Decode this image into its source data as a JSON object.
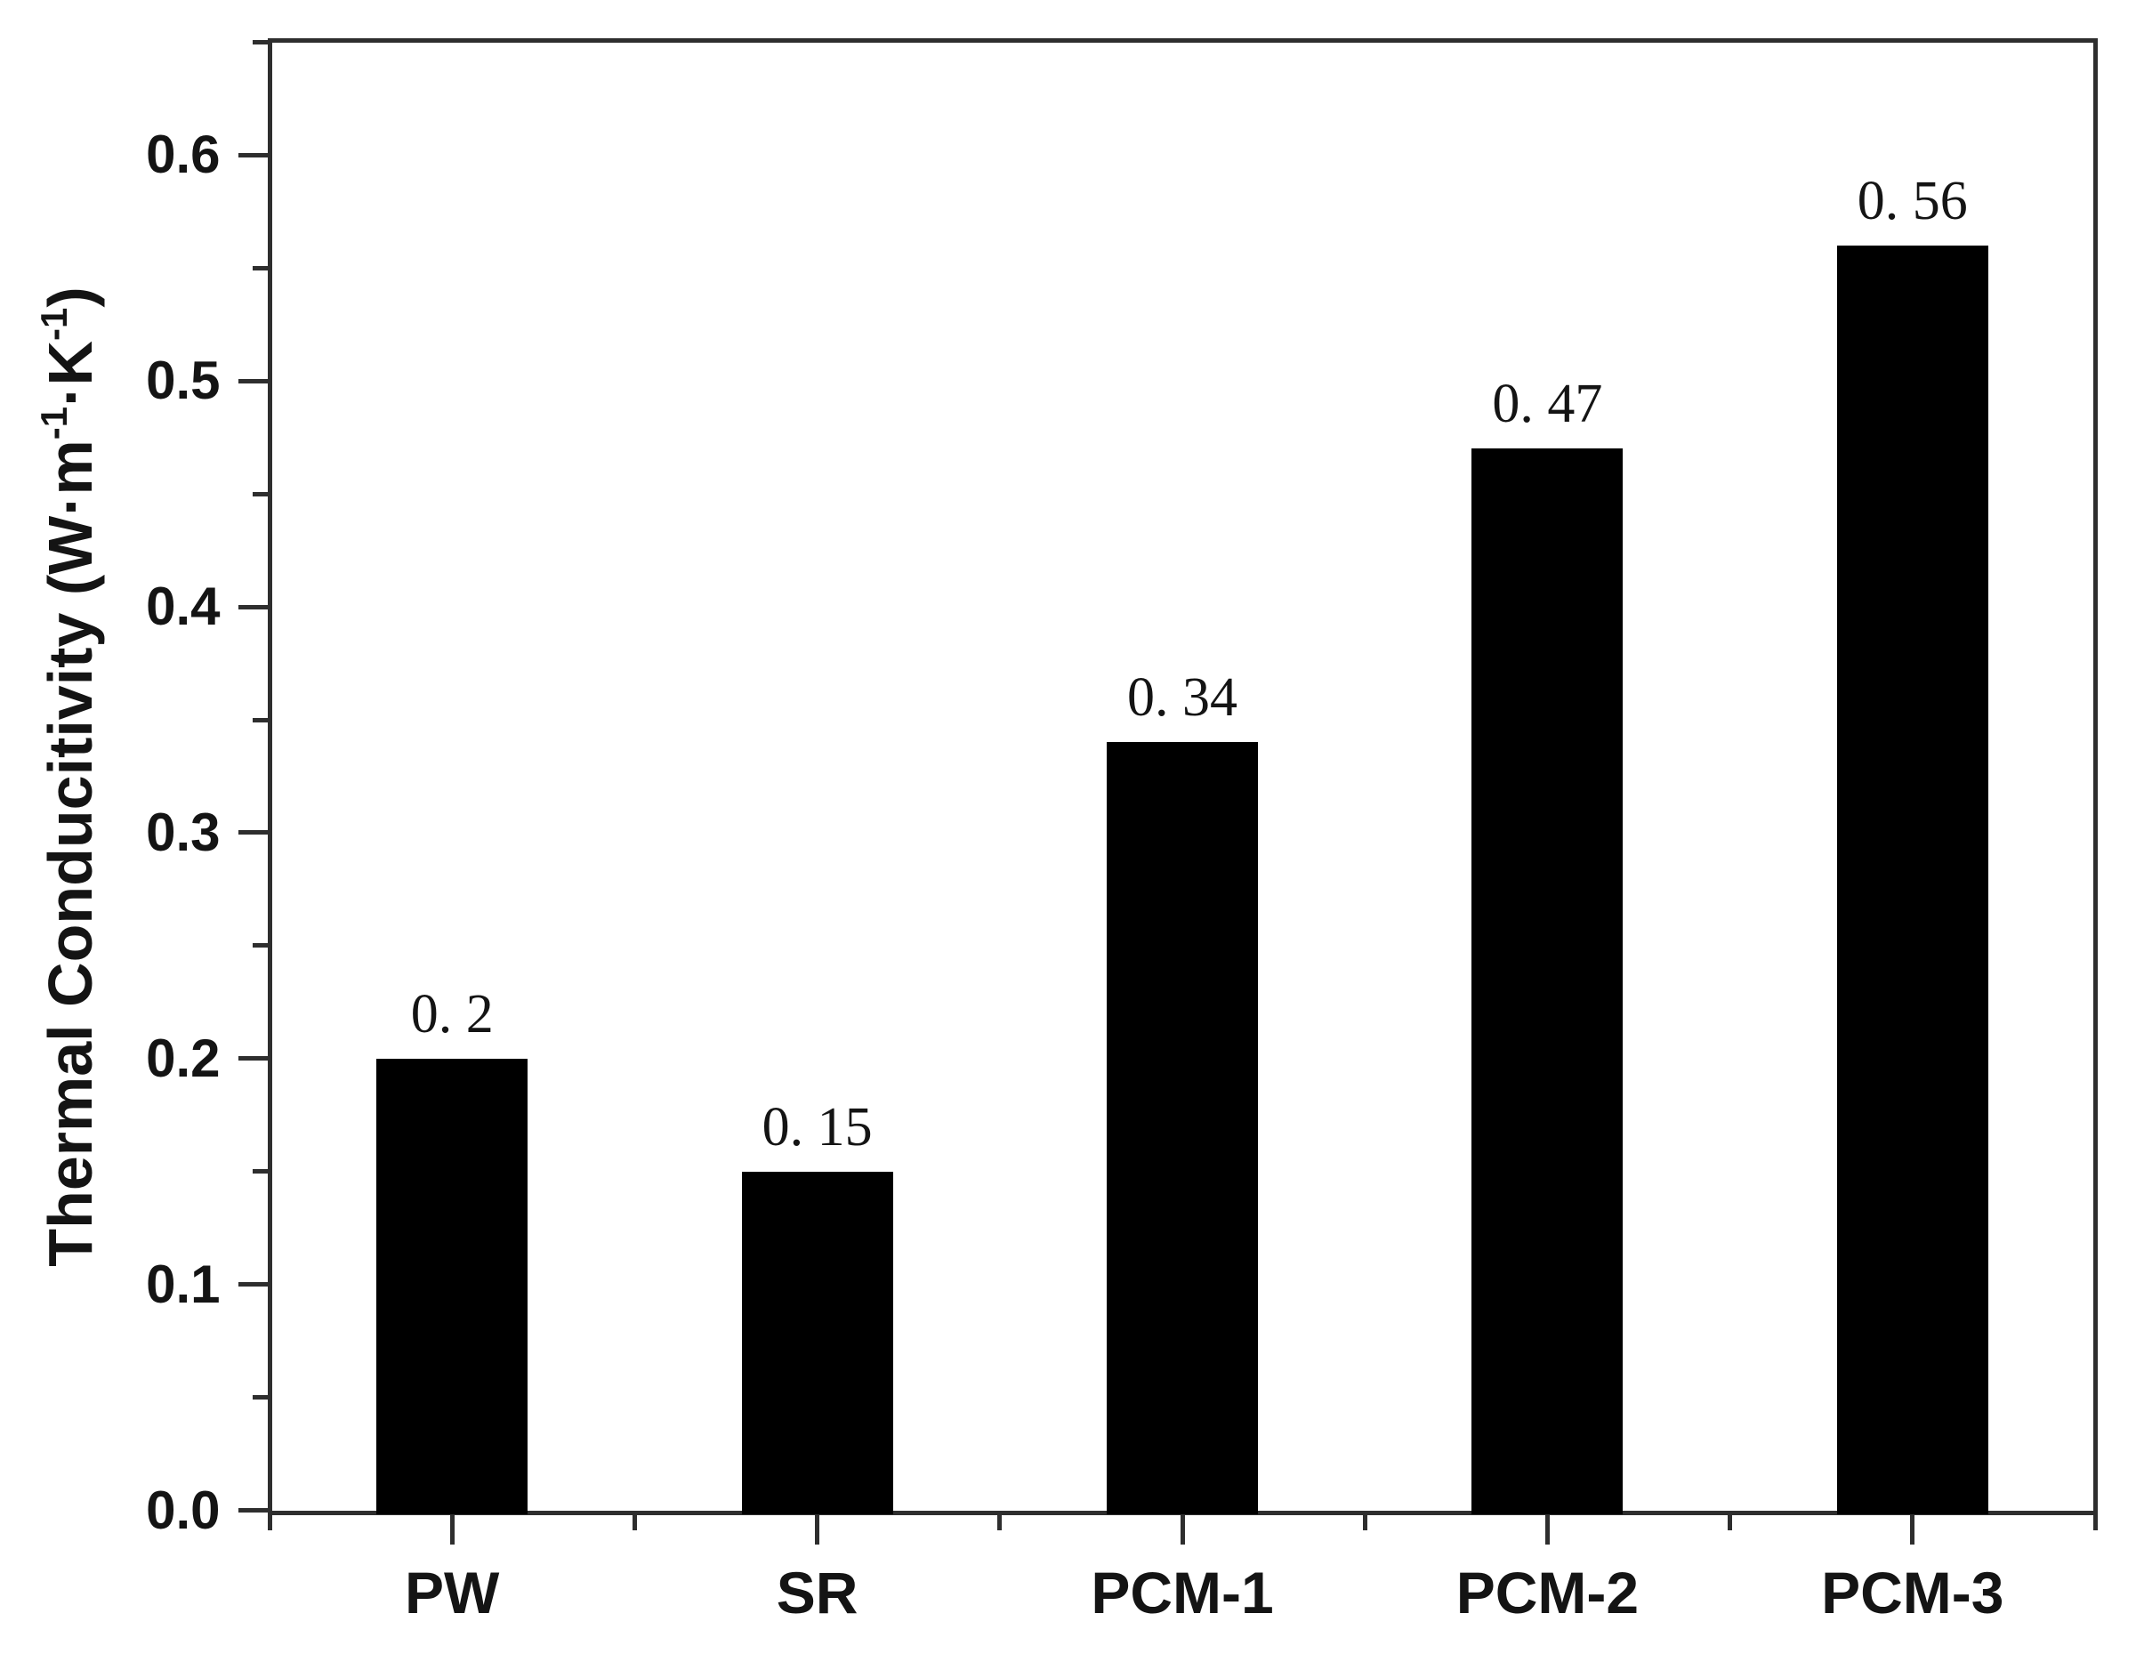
{
  "page": {
    "background": "#ffffff"
  },
  "chart_data": {
    "type": "bar",
    "title": "",
    "categories": [
      "PW",
      "SR",
      "PCM-1",
      "PCM-2",
      "PCM-3"
    ],
    "values": [
      0.2,
      0.15,
      0.34,
      0.47,
      0.56
    ],
    "bar_value_labels": [
      "0. 2",
      "0. 15",
      "0. 34",
      "0. 47",
      "0. 56"
    ],
    "xlabel": "",
    "ylabel": "Thermal Conducitivity (W·m⁻¹·K⁻¹)",
    "ylabel_parts": [
      {
        "text": "Thermal Conducitivity (W·m",
        "sup": false
      },
      {
        "text": "-1",
        "sup": true
      },
      {
        "text": "·K",
        "sup": false
      },
      {
        "text": "-1",
        "sup": true
      },
      {
        "text": ")",
        "sup": false
      }
    ],
    "ylim": [
      0,
      0.65
    ],
    "yticks": [
      0.0,
      0.1,
      0.2,
      0.3,
      0.4,
      0.5,
      0.6
    ],
    "ytick_labels": [
      "0.0",
      "0.1",
      "0.2",
      "0.3",
      "0.4",
      "0.5",
      "0.6"
    ],
    "y_minor_tick_step": 0.05,
    "grid": false,
    "legend": null,
    "bar_color": "#000000",
    "axis_color": "#2e2e2e",
    "text_color": "#141414"
  }
}
